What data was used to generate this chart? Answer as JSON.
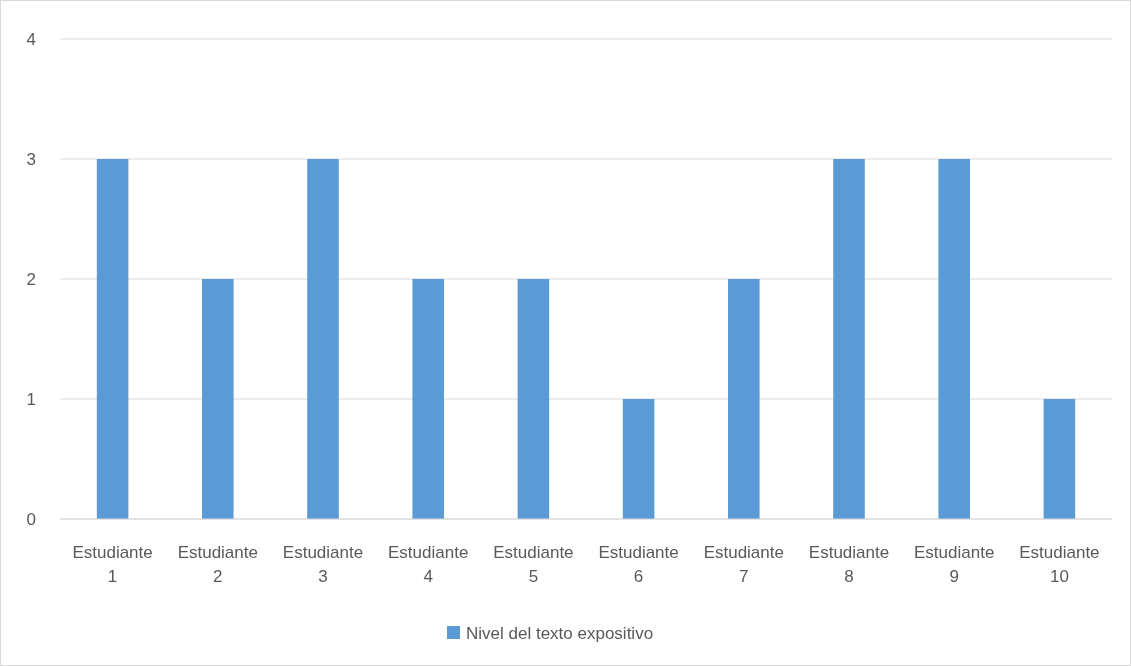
{
  "chart_data": {
    "type": "bar",
    "categories": [
      "Estudiante 1",
      "Estudiante 2",
      "Estudiante 3",
      "Estudiante 4",
      "Estudiante 5",
      "Estudiante 6",
      "Estudiante 7",
      "Estudiante 8",
      "Estudiante 9",
      "Estudiante 10"
    ],
    "series": [
      {
        "name": "Nivel del texto expositivo",
        "color": "#5b9bd5",
        "values": [
          3,
          2,
          3,
          2,
          2,
          1,
          2,
          3,
          3,
          1
        ]
      }
    ],
    "ylim": [
      0,
      4
    ],
    "yticks": [
      0,
      1,
      2,
      3,
      4
    ],
    "grid": "y",
    "legend": "bottom"
  }
}
